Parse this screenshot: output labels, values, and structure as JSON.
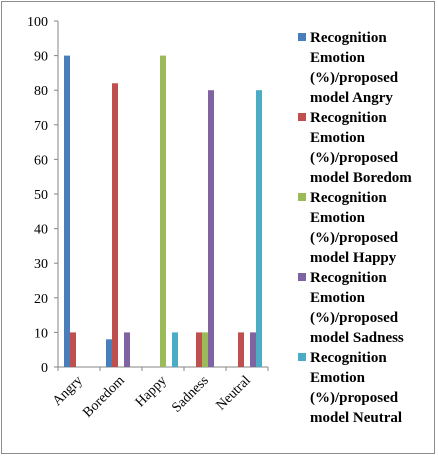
{
  "chart_data": {
    "type": "bar",
    "categories": [
      "Angry",
      "Boredom",
      "Happy",
      "Sadness",
      "Neutral"
    ],
    "series": [
      {
        "name": "Recognition Emotion (%)/proposed model Angry",
        "color": "#4a7ebb",
        "values": [
          90,
          8,
          0,
          0,
          0
        ]
      },
      {
        "name": "Recognition Emotion (%)/proposed model Boredom",
        "color": "#c0504d",
        "values": [
          10,
          82,
          0,
          10,
          10
        ]
      },
      {
        "name": "Recognition Emotion (%)/proposed model Happy",
        "color": "#9bbb59",
        "values": [
          0,
          0,
          90,
          10,
          0
        ]
      },
      {
        "name": "Recognition Emotion (%)/proposed model Sadness",
        "color": "#8064a2",
        "values": [
          0,
          10,
          0,
          80,
          10
        ]
      },
      {
        "name": "Recognition Emotion (%)/proposed model Neutral",
        "color": "#4bacc6",
        "values": [
          0,
          0,
          10,
          0,
          80
        ]
      }
    ],
    "yticks": [
      "0",
      "10",
      "20",
      "30",
      "40",
      "50",
      "60",
      "70",
      "80",
      "90",
      "100"
    ],
    "ylim": [
      0,
      100
    ],
    "grid": false,
    "legend_position": "right",
    "legend_lines": [
      [
        "Recognition",
        "Emotion",
        "(%)/proposed",
        "model Angry"
      ],
      [
        "Recognition",
        "Emotion",
        "(%)/proposed",
        "model Boredom"
      ],
      [
        "Recognition",
        "Emotion",
        "(%)/proposed",
        "model Happy"
      ],
      [
        "Recognition",
        "Emotion",
        "(%)/proposed",
        "model Sadness"
      ],
      [
        "Recognition",
        "Emotion",
        "(%)/proposed",
        "model Neutral"
      ]
    ]
  }
}
